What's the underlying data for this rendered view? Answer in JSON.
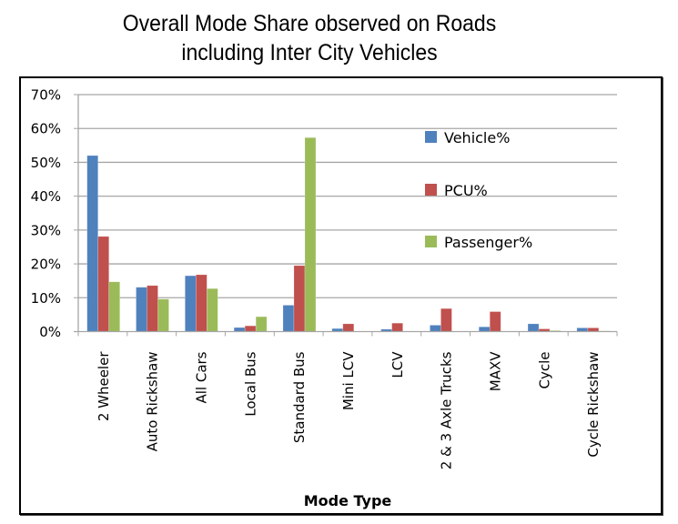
{
  "chart_data": {
    "type": "bar",
    "title": "Overall Mode Share observed on Roads including Inter City Vehicles",
    "title_lines": [
      "Overall Mode Share observed on Roads",
      "including Inter City Vehicles"
    ],
    "xlabel": "Mode Type",
    "ylabel": "",
    "ylim": [
      0,
      70
    ],
    "y_ticks": [
      "0%",
      "10%",
      "20%",
      "30%",
      "40%",
      "50%",
      "60%",
      "70%"
    ],
    "y_tick_values": [
      0,
      10,
      20,
      30,
      40,
      50,
      60,
      70
    ],
    "grid": true,
    "legend_position": "top-right",
    "categories": [
      "2 Wheeler",
      "Auto Rickshaw",
      "All Cars",
      "Local Bus",
      "Standard Bus",
      "Mini LCV",
      "LCV",
      "2 & 3 Axle Trucks",
      "MAXV",
      "Cycle",
      "Cycle Rickshaw"
    ],
    "series": [
      {
        "name": "Vehicle%",
        "color": "#4F81BD",
        "values": [
          52.0,
          13.1,
          16.5,
          1.2,
          7.8,
          0.9,
          0.7,
          1.9,
          1.4,
          2.3,
          1.1
        ]
      },
      {
        "name": "PCU%",
        "color": "#C0504D",
        "values": [
          28.1,
          13.6,
          16.8,
          1.7,
          19.5,
          2.3,
          2.5,
          6.8,
          5.9,
          0.8,
          1.1
        ]
      },
      {
        "name": "Passenger%",
        "color": "#9BBB59",
        "values": [
          14.7,
          9.6,
          12.7,
          4.4,
          57.3,
          0.0,
          0.0,
          0.0,
          0.0,
          0.3,
          0.2
        ]
      }
    ]
  }
}
